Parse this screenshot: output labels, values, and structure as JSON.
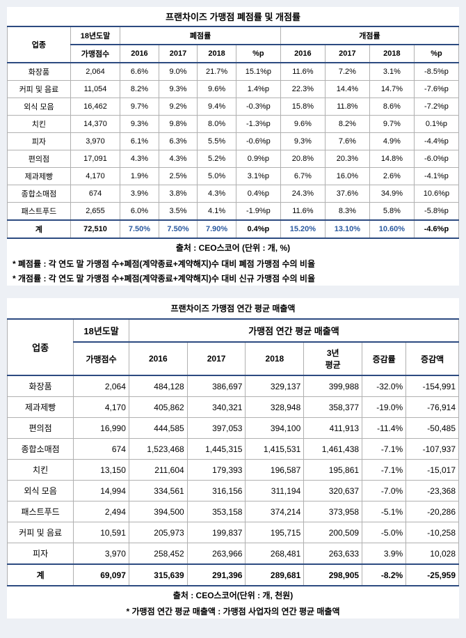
{
  "table1": {
    "title": "프랜차이즈 가맹점 폐점률 및 개점률",
    "col_category": "업종",
    "col_count_top": "18년도말",
    "col_count_bot": "가맹점수",
    "group_close": "폐점률",
    "group_open": "개점률",
    "years": [
      "2016",
      "2017",
      "2018"
    ],
    "pctp": "%p",
    "rows": [
      {
        "cat": "화장품",
        "count": "2,064",
        "close": [
          "6.6%",
          "9.0%",
          "21.7%",
          "15.1%p"
        ],
        "open": [
          "11.6%",
          "7.2%",
          "3.1%",
          "-8.5%p"
        ]
      },
      {
        "cat": "커피 및 음료",
        "count": "11,054",
        "close": [
          "8.2%",
          "9.3%",
          "9.6%",
          "1.4%p"
        ],
        "open": [
          "22.3%",
          "14.4%",
          "14.7%",
          "-7.6%p"
        ]
      },
      {
        "cat": "외식 모음",
        "count": "16,462",
        "close": [
          "9.7%",
          "9.2%",
          "9.4%",
          "-0.3%p"
        ],
        "open": [
          "15.8%",
          "11.8%",
          "8.6%",
          "-7.2%p"
        ]
      },
      {
        "cat": "치킨",
        "count": "14,370",
        "close": [
          "9.3%",
          "9.8%",
          "8.0%",
          "-1.3%p"
        ],
        "open": [
          "9.6%",
          "8.2%",
          "9.7%",
          "0.1%p"
        ]
      },
      {
        "cat": "피자",
        "count": "3,970",
        "close": [
          "6.1%",
          "6.3%",
          "5.5%",
          "-0.6%p"
        ],
        "open": [
          "9.3%",
          "7.6%",
          "4.9%",
          "-4.4%p"
        ]
      },
      {
        "cat": "편의점",
        "count": "17,091",
        "close": [
          "4.3%",
          "4.3%",
          "5.2%",
          "0.9%p"
        ],
        "open": [
          "20.8%",
          "20.3%",
          "14.8%",
          "-6.0%p"
        ]
      },
      {
        "cat": "제과제빵",
        "count": "4,170",
        "close": [
          "1.9%",
          "2.5%",
          "5.0%",
          "3.1%p"
        ],
        "open": [
          "6.7%",
          "16.0%",
          "2.6%",
          "-4.1%p"
        ]
      },
      {
        "cat": "종합소매점",
        "count": "674",
        "close": [
          "3.9%",
          "3.8%",
          "4.3%",
          "0.4%p"
        ],
        "open": [
          "24.3%",
          "37.6%",
          "34.9%",
          "10.6%p"
        ]
      },
      {
        "cat": "패스트푸드",
        "count": "2,655",
        "close": [
          "6.0%",
          "3.5%",
          "4.1%",
          "-1.9%p"
        ],
        "open": [
          "11.6%",
          "8.3%",
          "5.8%",
          "-5.8%p"
        ]
      }
    ],
    "total": {
      "cat": "계",
      "count": "72,510",
      "close": [
        "7.50%",
        "7.50%",
        "7.90%",
        "0.4%p"
      ],
      "open": [
        "15.20%",
        "13.10%",
        "10.60%",
        "-4.6%p"
      ]
    },
    "source": "출처 : CEO스코어 (단위 : 개, %)",
    "note1": "* 폐점률 : 각 연도 말 가맹점 수+폐점(계약종료+계약해지)수 대비 폐점 가맹점 수의 비율",
    "note2": "* 개점률 : 각 연도 말 가맹점 수+폐점(계약종료+계약해지)수 대비 신규 가맹점 수의 비율"
  },
  "table2": {
    "title": "프랜차이즈 가맹점 연간 평균 매출액",
    "col_category": "업종",
    "col_count_top": "18년도말",
    "col_count_bot": "가맹점수",
    "group_sales": "가맹점 연간 평균 매출액",
    "ycols": [
      "2016",
      "2017",
      "2018"
    ],
    "avg3_top": "3년",
    "avg3_bot": "평균",
    "rate": "증감률",
    "amount": "증감액",
    "rows": [
      {
        "cat": "화장품",
        "count": "2,064",
        "v": [
          "484,128",
          "386,697",
          "329,137",
          "399,988",
          "-32.0%",
          "-154,991"
        ]
      },
      {
        "cat": "제과제빵",
        "count": "4,170",
        "v": [
          "405,862",
          "340,321",
          "328,948",
          "358,377",
          "-19.0%",
          "-76,914"
        ]
      },
      {
        "cat": "편의점",
        "count": "16,990",
        "v": [
          "444,585",
          "397,053",
          "394,100",
          "411,913",
          "-11.4%",
          "-50,485"
        ]
      },
      {
        "cat": "종합소매점",
        "count": "674",
        "v": [
          "1,523,468",
          "1,445,315",
          "1,415,531",
          "1,461,438",
          "-7.1%",
          "-107,937"
        ]
      },
      {
        "cat": "치킨",
        "count": "13,150",
        "v": [
          "211,604",
          "179,393",
          "196,587",
          "195,861",
          "-7.1%",
          "-15,017"
        ]
      },
      {
        "cat": "외식 모음",
        "count": "14,994",
        "v": [
          "334,561",
          "316,156",
          "311,194",
          "320,637",
          "-7.0%",
          "-23,368"
        ]
      },
      {
        "cat": "패스트푸드",
        "count": "2,494",
        "v": [
          "394,500",
          "353,158",
          "374,214",
          "373,958",
          "-5.1%",
          "-20,286"
        ]
      },
      {
        "cat": "커피 및 음료",
        "count": "10,591",
        "v": [
          "205,973",
          "199,837",
          "195,715",
          "200,509",
          "-5.0%",
          "-10,258"
        ]
      },
      {
        "cat": "피자",
        "count": "3,970",
        "v": [
          "258,452",
          "263,966",
          "268,481",
          "263,633",
          "3.9%",
          "10,028"
        ]
      }
    ],
    "total": {
      "cat": "계",
      "count": "69,097",
      "v": [
        "315,639",
        "291,396",
        "289,681",
        "298,905",
        "-8.2%",
        "-25,959"
      ]
    },
    "source": "출처 : CEO스코어(단위 : 개, 천원)",
    "note1": "* 가맹점 연간 평균 매출액 : 가맹점 사업자의 연간 평균 매출액"
  }
}
